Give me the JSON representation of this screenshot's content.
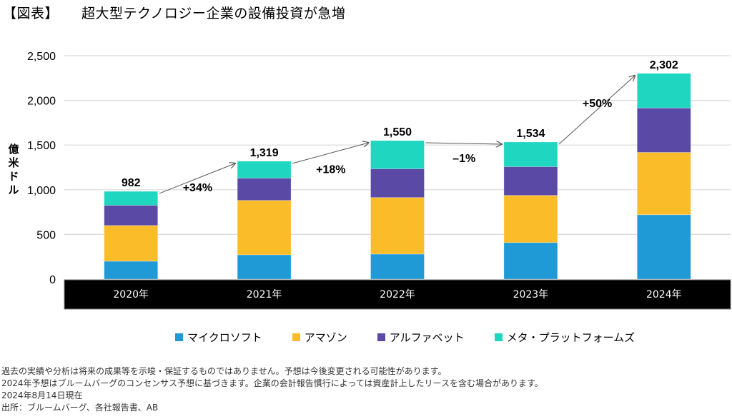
{
  "title": {
    "bracket": "【図表】",
    "text": "超大型テクノロジー企業の設備投資が急増"
  },
  "chart_data": {
    "type": "bar",
    "stacked": true,
    "title": "超大型テクノロジー企業の設備投資が急増",
    "xlabel": "",
    "ylabel": "億米ドル",
    "ylim": [
      0,
      2500
    ],
    "yticks": [
      0,
      500,
      1000,
      1500,
      2000,
      2500
    ],
    "ytick_labels": [
      "0",
      "500",
      "1,000",
      "1,500",
      "2,000",
      "2,500"
    ],
    "grid": true,
    "legend_position": "bottom",
    "categories": [
      "2020年",
      "2021年",
      "2022年",
      "2023年",
      "2024年"
    ],
    "series": [
      {
        "name": "マイクロソフト",
        "color": "#1f9ad6",
        "values": [
          200,
          272,
          280,
          409,
          721
        ]
      },
      {
        "name": "アマゾン",
        "color": "#fbbc2a",
        "values": [
          400,
          609,
          633,
          528,
          697
        ]
      },
      {
        "name": "アルファベット",
        "color": "#5a4aa6",
        "values": [
          226,
          249,
          321,
          321,
          497
        ]
      },
      {
        "name": "メタ・プラットフォームズ",
        "color": "#1fd6c0",
        "values": [
          156,
          189,
          316,
          276,
          387
        ]
      }
    ],
    "totals": [
      982,
      1319,
      1550,
      1534,
      2302
    ],
    "total_labels": [
      "982",
      "1,319",
      "1,550",
      "1,534",
      "2,302"
    ],
    "growth_labels": [
      "+34%",
      "+18%",
      "–1%",
      "+50%"
    ]
  },
  "notes": [
    "過去の実績や分析は将来の成果等を示唆・保証するものではありません。予想は今後変更される可能性があります。",
    "2024年予想はブルームバーグのコンセンサス予想に基づきます。企業の会計報告慣行によっては資産計上したリースを含む場合があります。",
    "2024年8月14日現在",
    "出所：ブルームバーグ、各社報告書、AB"
  ]
}
